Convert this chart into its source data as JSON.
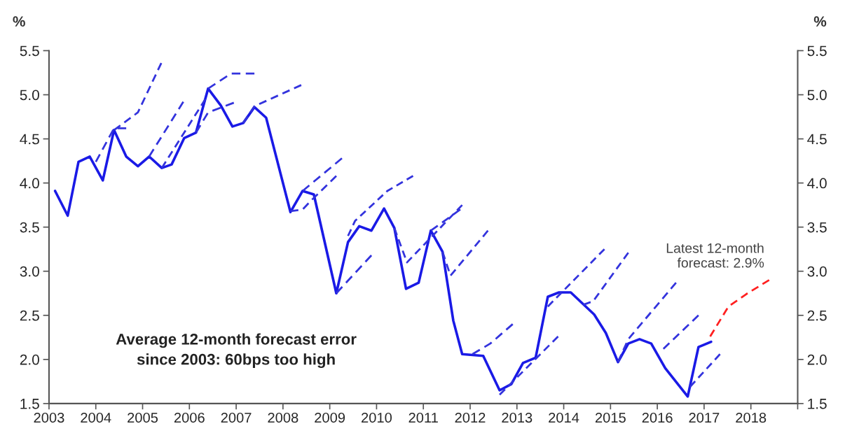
{
  "chart_data": {
    "type": "line",
    "ylabel": "%",
    "y2label": "%",
    "xlim": [
      2003,
      2019
    ],
    "xticks": [
      2003,
      2004,
      2005,
      2006,
      2007,
      2008,
      2009,
      2010,
      2011,
      2012,
      2013,
      2014,
      2015,
      2016,
      2017,
      2018,
      {
        "value": 2019,
        "label": null
      }
    ],
    "ylim": [
      1.5,
      5.5
    ],
    "yticks": [
      1.5,
      {
        "value": 2,
        "label": "2.0"
      },
      2.5,
      {
        "value": 3,
        "label": "3.0"
      },
      3.5,
      {
        "value": 4,
        "label": "4.0"
      },
      4.5,
      {
        "value": 5,
        "label": "5.0"
      },
      5.5
    ],
    "y2lim": [
      1.5,
      5.5
    ],
    "y2ticks": [
      1.5,
      {
        "value": 2,
        "label": "2.0"
      },
      2.5,
      {
        "value": 3,
        "label": "3.0"
      },
      3.5,
      {
        "value": 4,
        "label": "4.0"
      },
      4.5,
      {
        "value": 5,
        "label": "5.0"
      },
      5.5
    ],
    "grid": false,
    "marker": "none",
    "series": [
      {
        "color": "#1a1ae6",
        "line_style": "solid",
        "x": [
          2003.13,
          2003.4,
          2003.63,
          2003.87,
          2004.15,
          2004.39,
          2004.65,
          2004.9,
          2005.14,
          2005.41,
          2005.62,
          2005.89,
          2006.14,
          2006.4,
          2006.67,
          2006.92,
          2007.15,
          2007.39,
          2007.64,
          2008.16,
          2008.42,
          2008.66,
          2009.14,
          2009.39,
          2009.63,
          2009.89,
          2010.16,
          2010.38,
          2010.63,
          2010.9,
          2011.16,
          2011.41,
          2011.64,
          2011.83,
          2012.28,
          2012.63,
          2012.88,
          2013.13,
          2013.4,
          2013.66,
          2013.9,
          2014.15,
          2014.65,
          2014.9,
          2015.16,
          2015.38,
          2015.62,
          2015.87,
          2016.17,
          2016.65,
          2016.88,
          2017.15
        ],
        "values": [
          3.91,
          3.63,
          4.24,
          4.3,
          4.03,
          4.6,
          4.3,
          4.19,
          4.3,
          4.17,
          4.21,
          4.51,
          4.57,
          5.07,
          4.88,
          4.64,
          4.68,
          4.86,
          4.74,
          3.67,
          3.91,
          3.87,
          2.75,
          3.33,
          3.51,
          3.46,
          3.71,
          3.49,
          2.8,
          2.87,
          3.46,
          3.22,
          2.44,
          2.06,
          2.04,
          1.65,
          1.72,
          1.96,
          2.02,
          2.71,
          2.76,
          2.76,
          2.51,
          2.3,
          1.97,
          2.18,
          2.23,
          2.18,
          1.9,
          1.58,
          2.14,
          2.2
        ]
      },
      {
        "color": "#3333dd",
        "line_style": "dashed",
        "x": [
          2004.39,
          2004.9,
          2005.4
        ],
        "values": [
          4.6,
          4.8,
          5.36
        ]
      },
      {
        "color": "#3333dd",
        "line_style": "dashed",
        "x": [
          2004.0,
          2004.39,
          2004.65
        ],
        "values": [
          4.24,
          4.62,
          4.62
        ]
      },
      {
        "color": "#3333dd",
        "line_style": "dashed",
        "x": [
          2005.14,
          2005.87
        ],
        "values": [
          4.3,
          4.92
        ]
      },
      {
        "color": "#3333dd",
        "line_style": "dashed",
        "x": [
          2005.41,
          2006.34
        ],
        "values": [
          4.17,
          4.95
        ]
      },
      {
        "color": "#3333dd",
        "line_style": "dashed",
        "x": [
          2006.4,
          2006.89,
          2007.39
        ],
        "values": [
          5.07,
          5.24,
          5.24
        ]
      },
      {
        "color": "#3333dd",
        "line_style": "dashed",
        "x": [
          2006.14,
          2006.4,
          2006.95
        ],
        "values": [
          4.57,
          4.8,
          4.91
        ]
      },
      {
        "color": "#3333dd",
        "line_style": "dashed",
        "x": [
          2007.15,
          2007.39,
          2008.39
        ],
        "values": [
          4.68,
          4.87,
          5.11
        ]
      },
      {
        "color": "#3333dd",
        "line_style": "dashed",
        "x": [
          2008.42,
          2009.26
        ],
        "values": [
          3.91,
          4.28
        ]
      },
      {
        "color": "#3333dd",
        "line_style": "dashed",
        "x": [
          2008.16,
          2008.42,
          2008.58,
          2009.14
        ],
        "values": [
          3.68,
          3.7,
          3.79,
          4.08
        ]
      },
      {
        "color": "#3333dd",
        "line_style": "dashed",
        "x": [
          2009.14,
          2009.89
        ],
        "values": [
          2.75,
          3.18
        ]
      },
      {
        "color": "#3333dd",
        "line_style": "dashed",
        "x": [
          2009.39,
          2009.54,
          2010.23,
          2010.78
        ],
        "values": [
          3.4,
          3.57,
          3.91,
          4.08
        ]
      },
      {
        "color": "#3333dd",
        "line_style": "dashed",
        "x": [
          2010.38,
          2010.65,
          2011.83
        ],
        "values": [
          3.49,
          3.1,
          3.75
        ]
      },
      {
        "color": "#3333dd",
        "line_style": "dashed",
        "x": [
          2011.16,
          2011.79
        ],
        "values": [
          3.46,
          3.7
        ]
      },
      {
        "color": "#3333dd",
        "line_style": "dashed",
        "x": [
          2011.41,
          2011.58,
          2012.38
        ],
        "values": [
          3.22,
          2.95,
          3.46
        ]
      },
      {
        "color": "#3333dd",
        "line_style": "dashed",
        "x": [
          2012.05,
          2012.43,
          2012.91
        ],
        "values": [
          2.06,
          2.18,
          2.4
        ]
      },
      {
        "color": "#3333dd",
        "line_style": "dashed",
        "x": [
          2012.63,
          2013.88
        ],
        "values": [
          1.6,
          2.26
        ]
      },
      {
        "color": "#3333dd",
        "line_style": "dashed",
        "x": [
          2013.66,
          2014.87
        ],
        "values": [
          2.6,
          3.25
        ]
      },
      {
        "color": "#3333dd",
        "line_style": "dashed",
        "x": [
          2014.42,
          2014.63,
          2015.38
        ],
        "values": [
          2.62,
          2.66,
          3.21
        ]
      },
      {
        "color": "#3333dd",
        "line_style": "dashed",
        "x": [
          2015.16,
          2015.38,
          2016.4
        ],
        "values": [
          1.97,
          2.23,
          2.87
        ]
      },
      {
        "color": "#3333dd",
        "line_style": "dashed",
        "x": [
          2016.13,
          2016.88
        ],
        "values": [
          2.12,
          2.5
        ]
      },
      {
        "color": "#3333dd",
        "line_style": "dashed",
        "x": [
          2016.7,
          2017.34
        ],
        "values": [
          1.69,
          2.06
        ]
      },
      {
        "color": "#ff2020",
        "line_style": "dashed",
        "x": [
          2017.13,
          2017.52,
          2017.9,
          2018.39
        ],
        "values": [
          2.26,
          2.6,
          2.74,
          2.9
        ]
      }
    ],
    "annotations": [
      "Average 12-month forecast error\nsince 2003: 60bps too high",
      {
        "text": "Latest 12-month\nforecast: 2.9%",
        "x": 2018.39,
        "y": 2.9
      }
    ]
  }
}
